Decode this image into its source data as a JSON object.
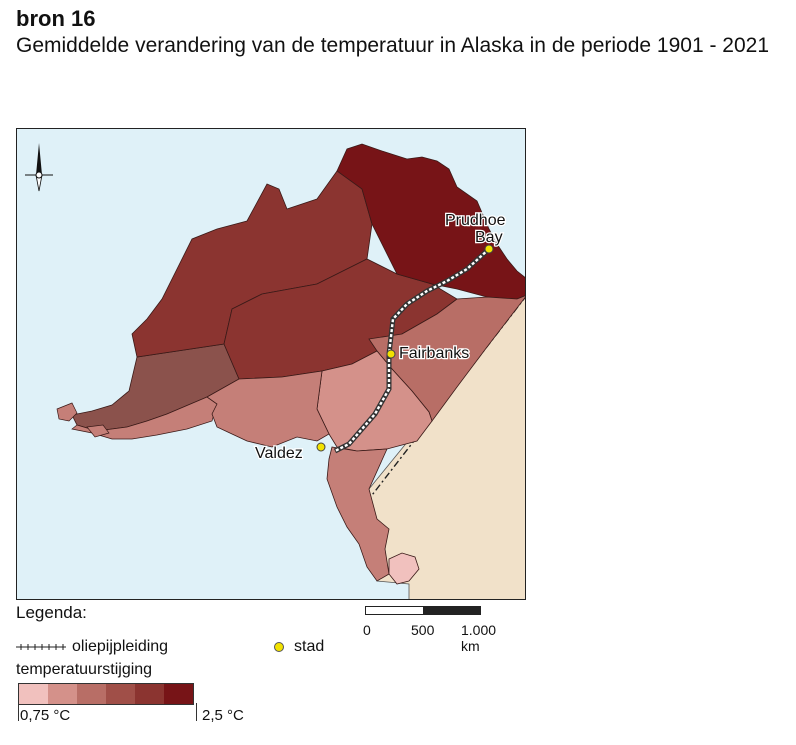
{
  "header": {
    "source": "bron 16",
    "title": "Gemiddelde verandering van de temperatuur in Alaska in de periode 1901 - 2021"
  },
  "map": {
    "cities": [
      {
        "name": "Prudhoe Bay",
        "line1": "Prudhoe",
        "line2": "Bay"
      },
      {
        "name": "Fairbanks"
      },
      {
        "name": "Valdez"
      }
    ],
    "icons": [
      "north-arrow-icon"
    ],
    "colors": {
      "sea": "#dff1f8",
      "neighbour_land": "#f1e1c9",
      "pipeline": "#ffffff",
      "city_dot": "#f2e200"
    }
  },
  "legend": {
    "title": "Legenda:",
    "pipeline_label": "oliepijpleiding",
    "city_label": "stad",
    "temperature_title": "temperatuurstijging",
    "min_label": "0,75 °C",
    "max_label": "2,5 °C",
    "classes": [
      "#f1c1be",
      "#d4918a",
      "#b86e66",
      "#a04f48",
      "#8b3430",
      "#771417"
    ],
    "scale": {
      "labels": [
        "0",
        "500",
        "1.000 km"
      ]
    }
  }
}
